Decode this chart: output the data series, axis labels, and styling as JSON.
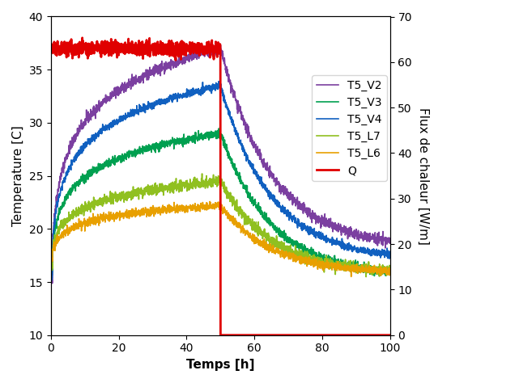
{
  "title": "",
  "xlabel": "Temps [h]",
  "ylabel_left": "Temperature [C]",
  "ylabel_right": "Flux de chaleur [W/m]",
  "xlim": [
    0,
    100
  ],
  "ylim_left": [
    10,
    40
  ],
  "ylim_right": [
    0,
    70
  ],
  "xticks": [
    0,
    20,
    40,
    60,
    80,
    100
  ],
  "yticks_left": [
    10,
    15,
    20,
    25,
    30,
    35,
    40
  ],
  "yticks_right": [
    0,
    10,
    20,
    30,
    40,
    50,
    60,
    70
  ],
  "legend_labels": [
    "T5_V2",
    "T5_V3",
    "T5_V4",
    "T5_L7",
    "T5_L6",
    "Q"
  ],
  "colors": {
    "T5_V2": "#7B3FA0",
    "T5_V3": "#00A050",
    "T5_V4": "#1060C0",
    "T5_L7": "#90C020",
    "T5_L6": "#E8A000",
    "Q": "#E00000"
  },
  "linewidths": {
    "T5_V2": 1.2,
    "T5_V3": 1.2,
    "T5_V4": 1.2,
    "T5_L7": 1.2,
    "T5_L6": 1.2,
    "Q": 2.0
  }
}
